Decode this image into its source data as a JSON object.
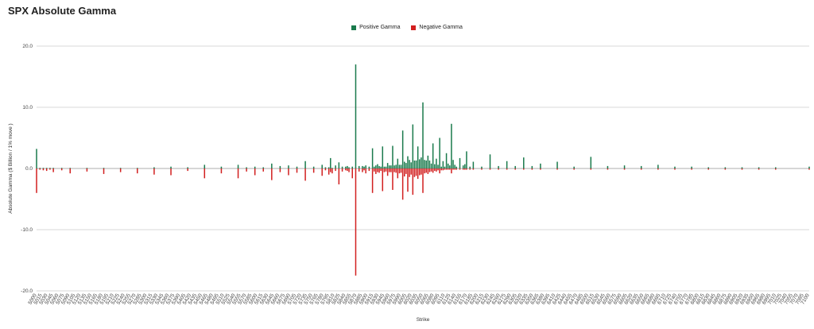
{
  "chart_data": {
    "type": "bar",
    "title": "SPX Absolute Gamma",
    "xlabel": "Strike",
    "ylabel": "Absolute Gamma ($ Billion / 1% move )",
    "ylim": [
      -20,
      20
    ],
    "yticks": [
      "20.0",
      "10.0",
      "0.0",
      "-10.0",
      "-20.0"
    ],
    "grid": true,
    "legend_placement": "top-center",
    "colors": {
      "positive": "#1a7a4c",
      "negative": "#d21f1f"
    },
    "x_tick_labels": [
      "5000",
      "5015",
      "5030",
      "5045",
      "5060",
      "5075",
      "5090",
      "5105",
      "5120",
      "5135",
      "5150",
      "5165",
      "5180",
      "5195",
      "5210",
      "5225",
      "5240",
      "5255",
      "5270",
      "5285",
      "5300",
      "5315",
      "5330",
      "5345",
      "5360",
      "5375",
      "5390",
      "5405",
      "5420",
      "5435",
      "5450",
      "5465",
      "5480",
      "5495",
      "5510",
      "5525",
      "5540",
      "5555",
      "5570",
      "5585",
      "5600",
      "5615",
      "5630",
      "5645",
      "5660",
      "5675",
      "5690",
      "5705",
      "5720",
      "5735",
      "5750",
      "5765",
      "5780",
      "5795",
      "5810",
      "5825",
      "5840",
      "5855",
      "5870",
      "5885",
      "5900",
      "5915",
      "5930",
      "5945",
      "5960",
      "5975",
      "5990",
      "6005",
      "6020",
      "6035",
      "6050",
      "6065",
      "6080",
      "6095",
      "6110",
      "6125",
      "6140",
      "6155",
      "6170",
      "6185",
      "6200",
      "6215",
      "6230",
      "6245",
      "6260",
      "6275",
      "6290",
      "6305",
      "6320",
      "6335",
      "6350",
      "6365",
      "6380",
      "6395",
      "6410",
      "6425",
      "6440",
      "6455",
      "6470",
      "6485",
      "6500",
      "6515",
      "6530",
      "6545",
      "6560",
      "6575",
      "6590",
      "6605",
      "6620",
      "6635",
      "6650",
      "6665",
      "6680",
      "6695",
      "6710",
      "6725",
      "6740",
      "6755",
      "6770",
      "6785",
      "6800",
      "6815",
      "6830",
      "6845",
      "6860",
      "6875",
      "6890",
      "6905",
      "6920",
      "6935",
      "6950",
      "6965",
      "6980",
      "6995",
      "7010",
      "7025",
      "7040",
      "7055",
      "7070",
      "7085",
      "7100"
    ],
    "strikes": [
      5000,
      5010,
      5020,
      5030,
      5040,
      5050,
      5075,
      5100,
      5150,
      5200,
      5250,
      5300,
      5350,
      5400,
      5450,
      5500,
      5550,
      5600,
      5625,
      5650,
      5675,
      5700,
      5725,
      5750,
      5775,
      5800,
      5825,
      5850,
      5860,
      5870,
      5875,
      5880,
      5890,
      5900,
      5910,
      5920,
      5925,
      5930,
      5940,
      5950,
      5960,
      5970,
      5975,
      5980,
      5990,
      6000,
      6005,
      6010,
      6015,
      6020,
      6025,
      6030,
      6035,
      6040,
      6045,
      6050,
      6055,
      6060,
      6065,
      6070,
      6075,
      6080,
      6085,
      6090,
      6095,
      6100,
      6105,
      6110,
      6115,
      6120,
      6125,
      6130,
      6135,
      6140,
      6145,
      6150,
      6155,
      6160,
      6165,
      6170,
      6175,
      6180,
      6185,
      6190,
      6195,
      6200,
      6205,
      6210,
      6215,
      6220,
      6225,
      6230,
      6235,
      6240,
      6245,
      6250,
      6260,
      6270,
      6275,
      6280,
      6290,
      6300,
      6325,
      6350,
      6375,
      6400,
      6425,
      6450,
      6475,
      6500,
      6550,
      6600,
      6650,
      6700,
      6750,
      6800,
      6850,
      6900,
      6950,
      7000,
      7050,
      7100,
      7150,
      7200,
      7300
    ],
    "series": [
      {
        "name": "Positive Gamma",
        "values": [
          3.2,
          0.1,
          0.1,
          0.1,
          0.1,
          0.1,
          0.1,
          0.1,
          0.1,
          0.1,
          0.1,
          0.1,
          0.2,
          0.3,
          0.2,
          0.6,
          0.3,
          0.6,
          0.2,
          0.3,
          0.2,
          0.8,
          0.4,
          0.5,
          0.3,
          1.2,
          0.3,
          0.6,
          0.2,
          0.2,
          1.7,
          0.1,
          0.5,
          1.0,
          0.3,
          0.3,
          0.4,
          0.2,
          0.3,
          17.0,
          0.4,
          0.4,
          0.3,
          0.5,
          0.3,
          3.3,
          0.3,
          0.5,
          0.7,
          0.4,
          0.3,
          3.6,
          0.3,
          0.3,
          0.9,
          0.5,
          0.5,
          3.7,
          0.5,
          0.6,
          1.6,
          0.6,
          0.6,
          6.2,
          1.1,
          0.9,
          2.0,
          1.4,
          1.0,
          7.2,
          1.3,
          1.3,
          3.6,
          1.5,
          1.8,
          10.8,
          1.4,
          1.3,
          2.1,
          1.3,
          0.8,
          4.1,
          0.7,
          1.6,
          0.6,
          5.0,
          0.3,
          1.2,
          0.3,
          2.5,
          0.8,
          0.5,
          7.3,
          1.4,
          0.6,
          0.3,
          1.7,
          0.5,
          0.7,
          2.8,
          0.3,
          1.1,
          0.3,
          2.3,
          0.4,
          1.2,
          0.4,
          1.8,
          0.4,
          0.8,
          1.1,
          0.3,
          1.9,
          0.4,
          0.5,
          0.4,
          0.6,
          0.3,
          0.3,
          0.2,
          0.2,
          0.2,
          0.2,
          0.2,
          0.3
        ]
      },
      {
        "name": "Negative Gamma",
        "values": [
          -4.0,
          -0.2,
          -0.3,
          -0.4,
          -0.2,
          -0.6,
          -0.3,
          -0.8,
          -0.5,
          -0.9,
          -0.6,
          -0.8,
          -1.0,
          -1.1,
          -0.4,
          -1.6,
          -0.8,
          -1.6,
          -0.5,
          -1.1,
          -0.5,
          -1.9,
          -0.6,
          -1.1,
          -0.7,
          -2.0,
          -0.7,
          -1.2,
          -0.3,
          -1.0,
          -0.6,
          -0.8,
          -0.4,
          -2.6,
          -0.5,
          -0.3,
          -0.4,
          -0.6,
          -1.6,
          -17.5,
          -0.5,
          -0.6,
          -0.3,
          -0.8,
          -0.4,
          -4.0,
          -0.5,
          -0.9,
          -0.6,
          -0.7,
          -0.4,
          -3.7,
          -0.6,
          -0.5,
          -1.2,
          -0.6,
          -0.6,
          -3.5,
          -0.6,
          -0.7,
          -1.6,
          -0.8,
          -0.7,
          -5.1,
          -1.3,
          -0.9,
          -3.8,
          -1.4,
          -1.0,
          -4.3,
          -1.4,
          -1.2,
          -1.7,
          -1.1,
          -1.0,
          -4.0,
          -0.8,
          -0.7,
          -0.9,
          -0.6,
          -0.5,
          -0.7,
          -0.4,
          -0.5,
          -0.3,
          -0.8,
          -0.3,
          -0.3,
          -0.2,
          -0.2,
          -0.2,
          -0.2,
          -0.8,
          -0.2,
          -0.2,
          -0.2,
          -0.2,
          -0.2,
          -0.2,
          -0.2,
          -0.2,
          -0.2,
          -0.2,
          -0.2,
          -0.2,
          -0.2,
          -0.2,
          -0.2,
          -0.2,
          -0.2,
          -0.2,
          -0.2,
          -0.2,
          -0.2,
          -0.2,
          -0.2,
          -0.2,
          -0.2,
          -0.2,
          -0.2,
          -0.2,
          -0.2,
          -0.2,
          -0.2,
          -0.2
        ]
      }
    ]
  }
}
